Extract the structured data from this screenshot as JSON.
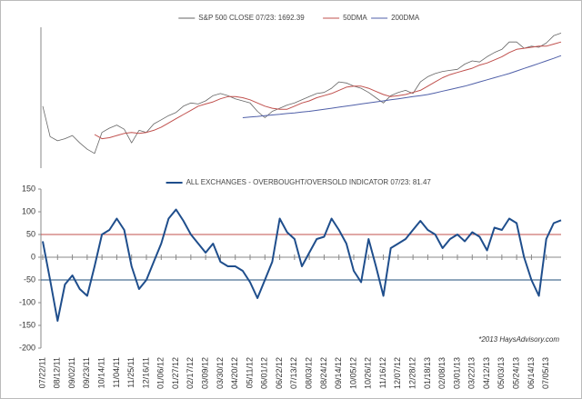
{
  "chart_data": [
    {
      "type": "line",
      "series": [
        {
          "name": "S&P 500 CLOSE 07/23: 1692.39",
          "color": "#666666",
          "values": [
            1345,
            1200,
            1180,
            1190,
            1205,
            1170,
            1140,
            1120,
            1220,
            1240,
            1255,
            1235,
            1170,
            1230,
            1220,
            1260,
            1280,
            1300,
            1315,
            1345,
            1360,
            1355,
            1370,
            1395,
            1405,
            1395,
            1380,
            1370,
            1360,
            1320,
            1290,
            1320,
            1335,
            1350,
            1360,
            1375,
            1390,
            1405,
            1410,
            1430,
            1460,
            1455,
            1440,
            1430,
            1410,
            1385,
            1360,
            1395,
            1410,
            1420,
            1405,
            1460,
            1485,
            1500,
            1510,
            1515,
            1520,
            1545,
            1560,
            1555,
            1580,
            1600,
            1615,
            1650,
            1650,
            1620,
            1630,
            1625,
            1645,
            1680,
            1692.39
          ]
        },
        {
          "name": "50DMA",
          "color": "#c0504d",
          "values": [
            null,
            null,
            null,
            null,
            null,
            null,
            null,
            1210,
            1190,
            1195,
            1205,
            1215,
            1220,
            1215,
            1220,
            1230,
            1245,
            1265,
            1285,
            1305,
            1325,
            1345,
            1355,
            1365,
            1380,
            1390,
            1390,
            1385,
            1375,
            1360,
            1345,
            1335,
            1330,
            1330,
            1345,
            1360,
            1370,
            1385,
            1395,
            1405,
            1420,
            1435,
            1440,
            1440,
            1430,
            1415,
            1400,
            1390,
            1395,
            1400,
            1410,
            1420,
            1440,
            1460,
            1480,
            1495,
            1505,
            1515,
            1525,
            1540,
            1550,
            1565,
            1580,
            1600,
            1615,
            1620,
            1625,
            1630,
            1630,
            1640,
            1650
          ]
        },
        {
          "name": "200DMA",
          "color": "#4f5fa8",
          "values": [
            null,
            null,
            null,
            null,
            null,
            null,
            null,
            null,
            null,
            null,
            null,
            null,
            null,
            null,
            null,
            null,
            null,
            null,
            null,
            null,
            null,
            null,
            null,
            null,
            null,
            null,
            null,
            1290,
            1293,
            1296,
            1300,
            1303,
            1306,
            1310,
            1313,
            1317,
            1320,
            1325,
            1330,
            1335,
            1340,
            1345,
            1350,
            1355,
            1360,
            1365,
            1370,
            1375,
            1380,
            1385,
            1390,
            1395,
            1400,
            1408,
            1416,
            1424,
            1432,
            1440,
            1450,
            1460,
            1470,
            1480,
            1490,
            1500,
            1512,
            1524,
            1536,
            1548,
            1560,
            1572,
            1585
          ]
        }
      ],
      "ylim": [
        1050,
        1720
      ]
    },
    {
      "type": "line",
      "categories": [
        "07/22/11",
        null,
        "08/12/11",
        null,
        "09/02/11",
        null,
        "09/23/11",
        null,
        "10/14/11",
        null,
        "11/04/11",
        null,
        "11/25/11",
        null,
        "12/16/11",
        null,
        "01/06/12",
        null,
        "01/27/12",
        null,
        "02/17/12",
        null,
        "03/09/12",
        null,
        "03/30/12",
        null,
        "04/20/12",
        null,
        "05/11/12",
        null,
        "06/01/12",
        null,
        "06/22/12",
        null,
        "07/13/12",
        null,
        "08/03/12",
        null,
        "08/24/12",
        null,
        "09/14/12",
        null,
        "10/05/12",
        null,
        "10/26/12",
        null,
        "11/16/12",
        null,
        "12/07/12",
        null,
        "12/28/12",
        null,
        "01/18/13",
        null,
        "02/08/13",
        null,
        "03/01/13",
        null,
        "03/22/13",
        null,
        "04/12/13",
        null,
        "05/03/13",
        null,
        "05/24/13",
        null,
        "06/14/13",
        null,
        "07/05/13",
        null,
        null
      ],
      "series": [
        {
          "name": "ALL EXCHANGES - OVERBOUGHT/OVERSOLD INDICATOR 07/23: 81.47",
          "color": "#1f4e8c",
          "values": [
            35,
            -50,
            -140,
            -60,
            -40,
            -70,
            -85,
            -20,
            50,
            60,
            85,
            60,
            -20,
            -70,
            -50,
            -10,
            30,
            85,
            105,
            80,
            50,
            30,
            10,
            30,
            -10,
            -20,
            -20,
            -30,
            -55,
            -90,
            -50,
            -10,
            85,
            55,
            40,
            -20,
            10,
            40,
            45,
            85,
            60,
            30,
            -30,
            -55,
            40,
            -20,
            -85,
            20,
            30,
            40,
            60,
            80,
            60,
            50,
            20,
            40,
            50,
            35,
            55,
            45,
            15,
            65,
            60,
            85,
            75,
            0,
            -50,
            -85,
            40,
            75,
            81.47
          ]
        }
      ],
      "ylim": [
        -200,
        150
      ],
      "yticks": [
        -200,
        -150,
        -100,
        -50,
        0,
        50,
        100,
        150
      ],
      "reference_lines": [
        {
          "value": 50,
          "color": "#c0504d"
        },
        {
          "value": -50,
          "color": "#1f4e79"
        }
      ],
      "annotation": "*2013 HaysAdvisory.com"
    }
  ]
}
